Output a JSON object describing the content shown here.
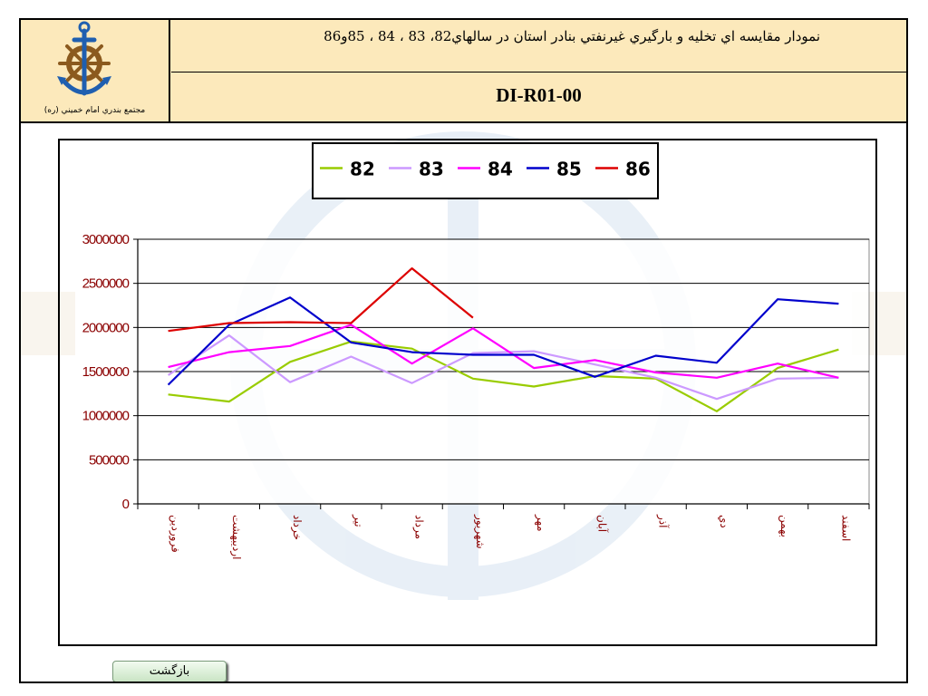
{
  "header": {
    "title": "نمودار مقايسه اي تخليه و بارگيري غيرنفتي بنادر استان در سالهاي82، 83 ، 84 ، 85و86",
    "code": "DI-R01-00",
    "logo_caption": "مجتمع بندري امام خميني (ره)",
    "logo_icon": "anchor-ship-wheel-icon"
  },
  "colors": {
    "header_bg": "#fce9bb",
    "axis_text": "#8b0000",
    "button_bg": "#d8eed4"
  },
  "chart_data": {
    "type": "line",
    "categories": [
      "فروردين",
      "ارديبهشت",
      "خرداد",
      "تير",
      "مرداد",
      "شهريور",
      "مهر",
      "آبان",
      "آذر",
      "دي",
      "بهمن",
      "اسفند"
    ],
    "ylim": [
      0,
      3000000
    ],
    "yticks": [
      "0",
      "500000",
      "1000000",
      "1500000",
      "2000000",
      "2500000",
      "3000000"
    ],
    "grid": true,
    "legend_position": "top-center",
    "series": [
      {
        "name": "82",
        "color": "#99cc00",
        "values": [
          1240000,
          1160000,
          1610000,
          1840000,
          1760000,
          1420000,
          1330000,
          1450000,
          1420000,
          1050000,
          1540000,
          1750000
        ]
      },
      {
        "name": "83",
        "color": "#cc99ff",
        "values": [
          1460000,
          1910000,
          1380000,
          1670000,
          1370000,
          1710000,
          1730000,
          1580000,
          1430000,
          1190000,
          1420000,
          1430000
        ]
      },
      {
        "name": "84",
        "color": "#ff00ff",
        "values": [
          1550000,
          1720000,
          1790000,
          2030000,
          1590000,
          1990000,
          1540000,
          1630000,
          1490000,
          1430000,
          1590000,
          1430000
        ]
      },
      {
        "name": "85",
        "color": "#0000cc",
        "values": [
          1350000,
          2030000,
          2340000,
          1830000,
          1720000,
          1690000,
          1690000,
          1440000,
          1680000,
          1600000,
          2320000,
          2270000
        ]
      },
      {
        "name": "86",
        "color": "#dd0000",
        "values": [
          1960000,
          2050000,
          2060000,
          2050000,
          2670000,
          2110000,
          null,
          null,
          null,
          null,
          null,
          null
        ]
      }
    ]
  },
  "back_button": {
    "label": "بازگشت"
  }
}
